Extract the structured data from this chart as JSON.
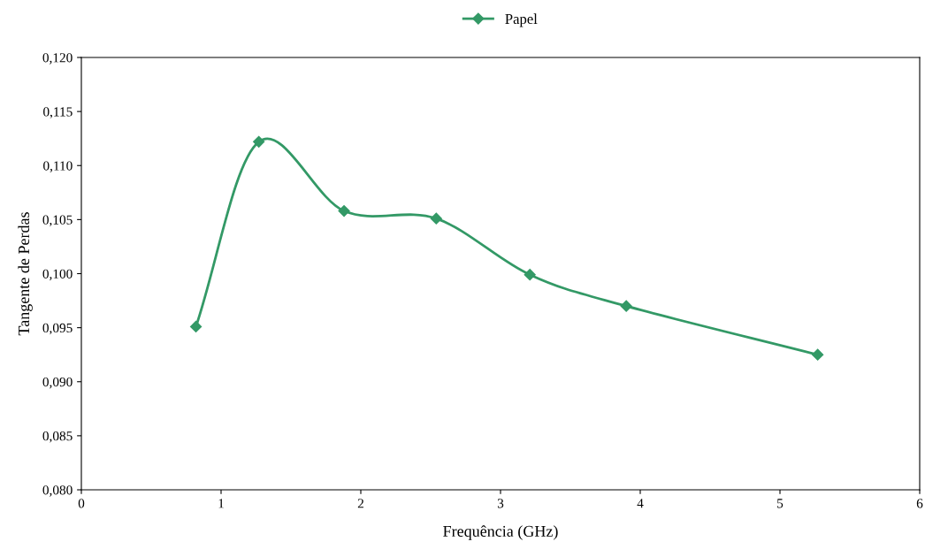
{
  "chart_data": {
    "type": "line",
    "xlabel": "Frequência (GHz)",
    "ylabel": "Tangente de Perdas",
    "series": [
      {
        "name": "Papel",
        "color": "#339966",
        "x": [
          0.82,
          1.27,
          1.88,
          2.54,
          3.21,
          3.9,
          5.27
        ],
        "values": [
          0.0951,
          0.1122,
          0.1058,
          0.1051,
          0.0999,
          0.097,
          0.0925
        ]
      }
    ],
    "xlim": [
      0,
      6
    ],
    "xticks": [
      0,
      1,
      2,
      3,
      4,
      5,
      6
    ],
    "ylim": [
      0.08,
      0.12
    ],
    "yticks": [
      {
        "value": 0.08,
        "label": "0,080"
      },
      {
        "value": 0.085,
        "label": "0,085"
      },
      {
        "value": 0.09,
        "label": "0,090"
      },
      {
        "value": 0.095,
        "label": "0,095"
      },
      {
        "value": 0.1,
        "label": "0,100"
      },
      {
        "value": 0.105,
        "label": "0,105"
      },
      {
        "value": 0.11,
        "label": "0,110"
      },
      {
        "value": 0.115,
        "label": "0,115"
      },
      {
        "value": 0.12,
        "label": "0,120"
      }
    ],
    "grid": false,
    "legend": "top",
    "marker": "diamond",
    "line_style": "solid"
  }
}
